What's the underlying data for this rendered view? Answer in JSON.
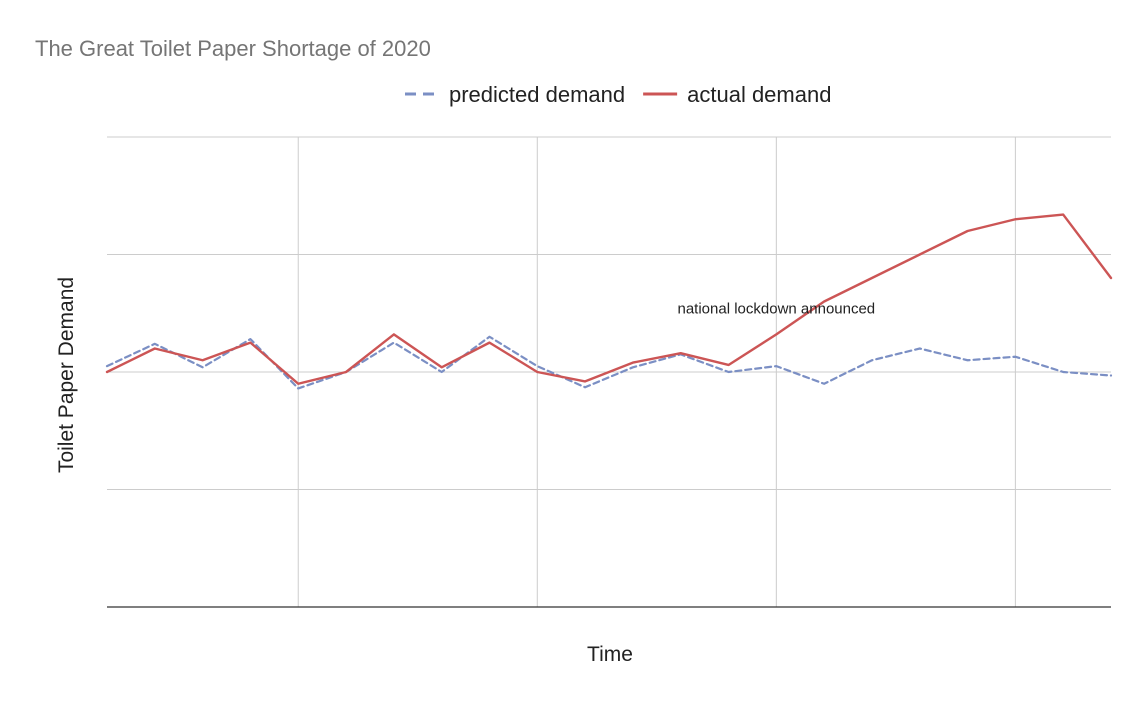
{
  "chart_data": {
    "type": "line",
    "title": "The Great Toilet Paper Shortage of 2020",
    "xlabel": "Time",
    "ylabel": "Toilet Paper Demand",
    "x_tick_labels": false,
    "y_tick_labels": false,
    "x": [
      0,
      1,
      2,
      3,
      4,
      5,
      6,
      7,
      8,
      9,
      10,
      11,
      12,
      13,
      14,
      15,
      16,
      17,
      18,
      19,
      20,
      21
    ],
    "xlim": [
      0,
      21
    ],
    "ylim": [
      0,
      4
    ],
    "grid": true,
    "legend_position": "top",
    "series": [
      {
        "name": "predicted demand",
        "style": "dashed",
        "color": "#7b8fc4",
        "values": [
          2.05,
          2.24,
          2.04,
          2.28,
          1.86,
          2.0,
          2.25,
          2.0,
          2.3,
          2.05,
          1.87,
          2.04,
          2.15,
          2.0,
          2.05,
          1.9,
          2.1,
          2.2,
          2.1,
          2.13,
          2.0,
          1.97
        ]
      },
      {
        "name": "actual demand",
        "style": "solid",
        "color": "#cc5555",
        "values": [
          2.0,
          2.2,
          2.1,
          2.25,
          1.9,
          2.0,
          2.32,
          2.04,
          2.25,
          2.0,
          1.92,
          2.08,
          2.16,
          2.06,
          2.32,
          2.6,
          2.8,
          3.0,
          3.2,
          3.3,
          3.34,
          2.8
        ]
      }
    ],
    "annotations": [
      {
        "text": "national lockdown announced",
        "x": 14,
        "y": 2.5
      }
    ]
  }
}
